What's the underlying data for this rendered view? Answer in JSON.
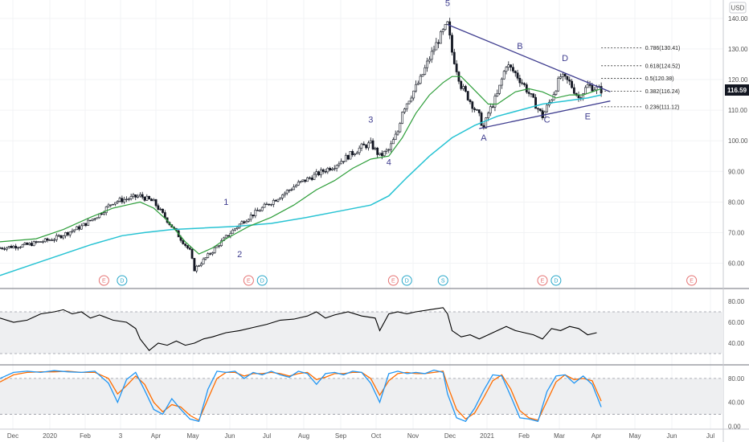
{
  "chart_data": {
    "type": "candlestick",
    "currency": "USD",
    "last_price": "116.59",
    "price_axis": {
      "min": 52,
      "max": 146,
      "ticks": [
        "140.00",
        "130.00",
        "120.00",
        "110.00",
        "100.00",
        "90.00",
        "80.00",
        "70.00",
        "60.00"
      ]
    },
    "time_axis": {
      "labels": [
        "Dec",
        "2020",
        "Feb",
        "3",
        "Apr",
        "May",
        "Jun",
        "Jul",
        "Aug",
        "Sep",
        "Oct",
        "Nov",
        "Dec",
        "2021",
        "Feb",
        "Mar",
        "Apr",
        "May",
        "Jun",
        "Jul"
      ]
    },
    "close_path": [
      [
        0,
        65
      ],
      [
        6,
        66
      ],
      [
        12,
        68
      ],
      [
        18,
        72
      ],
      [
        22,
        76
      ],
      [
        25,
        80
      ],
      [
        28,
        81
      ],
      [
        31,
        82
      ],
      [
        34,
        80
      ],
      [
        36,
        76
      ],
      [
        38,
        72
      ],
      [
        40,
        68
      ],
      [
        42,
        64
      ],
      [
        43,
        58
      ],
      [
        45,
        61
      ],
      [
        47,
        64
      ],
      [
        49,
        67
      ],
      [
        51,
        70
      ],
      [
        54,
        74
      ],
      [
        57,
        77
      ],
      [
        60,
        80
      ],
      [
        63,
        83
      ],
      [
        66,
        86
      ],
      [
        70,
        89
      ],
      [
        74,
        92
      ],
      [
        77,
        95
      ],
      [
        80,
        98
      ],
      [
        82,
        99
      ],
      [
        84,
        95
      ],
      [
        86,
        97
      ],
      [
        88,
        103
      ],
      [
        89,
        110
      ],
      [
        91,
        115
      ],
      [
        93,
        120
      ],
      [
        95,
        127
      ],
      [
        97,
        133
      ],
      [
        99,
        138
      ],
      [
        100,
        129
      ],
      [
        102,
        118
      ],
      [
        104,
        113
      ],
      [
        106,
        108
      ],
      [
        107,
        104
      ],
      [
        108,
        109
      ],
      [
        110,
        115
      ],
      [
        112,
        125
      ],
      [
        114,
        122
      ],
      [
        116,
        118
      ],
      [
        118,
        113
      ],
      [
        120,
        108
      ],
      [
        122,
        114
      ],
      [
        124,
        121
      ],
      [
        126,
        119
      ],
      [
        128,
        114
      ],
      [
        130,
        118
      ],
      [
        132,
        117
      ],
      [
        133,
        116.6
      ]
    ],
    "ma_fast": [
      [
        0,
        67
      ],
      [
        8,
        68
      ],
      [
        14,
        71
      ],
      [
        20,
        75
      ],
      [
        25,
        78
      ],
      [
        28,
        79
      ],
      [
        31,
        80
      ],
      [
        34,
        78
      ],
      [
        37,
        74
      ],
      [
        41,
        67
      ],
      [
        44,
        63
      ],
      [
        47,
        65
      ],
      [
        50,
        68
      ],
      [
        55,
        72
      ],
      [
        60,
        75
      ],
      [
        65,
        79
      ],
      [
        70,
        84
      ],
      [
        74,
        87
      ],
      [
        78,
        91
      ],
      [
        82,
        94
      ],
      [
        86,
        95
      ],
      [
        89,
        101
      ],
      [
        92,
        109
      ],
      [
        95,
        115
      ],
      [
        98,
        119
      ],
      [
        100,
        121
      ],
      [
        102,
        121
      ],
      [
        104,
        118
      ],
      [
        106,
        115
      ],
      [
        108,
        112
      ],
      [
        110,
        112
      ],
      [
        112,
        114
      ],
      [
        114,
        116
      ],
      [
        117,
        117
      ],
      [
        120,
        116
      ],
      [
        123,
        114
      ],
      [
        126,
        115
      ],
      [
        129,
        115
      ],
      [
        131,
        116
      ],
      [
        133,
        117
      ]
    ],
    "ma_slow": [
      [
        0,
        56
      ],
      [
        10,
        61
      ],
      [
        20,
        66
      ],
      [
        27,
        69
      ],
      [
        32,
        70
      ],
      [
        38,
        71
      ],
      [
        45,
        71.5
      ],
      [
        52,
        72
      ],
      [
        60,
        73
      ],
      [
        68,
        75
      ],
      [
        75,
        77
      ],
      [
        82,
        79
      ],
      [
        86,
        82
      ],
      [
        90,
        88
      ],
      [
        95,
        95
      ],
      [
        100,
        101
      ],
      [
        105,
        105
      ],
      [
        110,
        108
      ],
      [
        115,
        110
      ],
      [
        120,
        112
      ],
      [
        125,
        113
      ],
      [
        130,
        114
      ],
      [
        133,
        115
      ]
    ],
    "elliott_waves": [
      {
        "label": "1",
        "x": 50,
        "y": 79
      },
      {
        "label": "2",
        "x": 53,
        "y": 62
      },
      {
        "label": "3",
        "x": 82,
        "y": 106
      },
      {
        "label": "4",
        "x": 86,
        "y": 92
      },
      {
        "label": "5",
        "x": 99,
        "y": 144
      },
      {
        "label": "A",
        "x": 107,
        "y": 100
      },
      {
        "label": "B",
        "x": 115,
        "y": 130
      },
      {
        "label": "C",
        "x": 121,
        "y": 106
      },
      {
        "label": "D",
        "x": 125,
        "y": 126
      },
      {
        "label": "E",
        "x": 130,
        "y": 107
      }
    ],
    "triangle_lines": [
      {
        "from": [
          99,
          138
        ],
        "to": [
          135,
          116
        ]
      },
      {
        "from": [
          106,
          104
        ],
        "to": [
          135,
          113
        ]
      }
    ],
    "fibonacci_levels": [
      {
        "label": "0.786(130.41)",
        "value": 130.41
      },
      {
        "label": "0.618(124.52)",
        "value": 124.52
      },
      {
        "label": "0.5(120.38)",
        "value": 120.38
      },
      {
        "label": "0.382(116.24)",
        "value": 116.24
      },
      {
        "label": "0.236(111.12)",
        "value": 111.12
      }
    ],
    "events": [
      {
        "label": "E",
        "type": "earnings",
        "x": 23
      },
      {
        "label": "D",
        "type": "dividend",
        "x": 27
      },
      {
        "label": "E",
        "type": "earnings",
        "x": 55
      },
      {
        "label": "D",
        "type": "dividend",
        "x": 58
      },
      {
        "label": "E",
        "type": "earnings",
        "x": 87
      },
      {
        "label": "D",
        "type": "dividend",
        "x": 90
      },
      {
        "label": "S",
        "type": "split",
        "x": 98
      },
      {
        "label": "E",
        "type": "earnings",
        "x": 120
      },
      {
        "label": "D",
        "type": "dividend",
        "x": 123
      },
      {
        "label": "E",
        "type": "earnings",
        "x": 153
      }
    ],
    "rsi": {
      "ticks": [
        "80.00",
        "60.00",
        "40.00"
      ],
      "band": [
        30,
        70
      ],
      "values": [
        [
          0,
          64
        ],
        [
          3,
          60
        ],
        [
          6,
          62
        ],
        [
          9,
          68
        ],
        [
          12,
          70
        ],
        [
          14,
          72
        ],
        [
          16,
          68
        ],
        [
          18,
          70
        ],
        [
          20,
          64
        ],
        [
          22,
          67
        ],
        [
          25,
          62
        ],
        [
          28,
          60
        ],
        [
          30,
          54
        ],
        [
          31,
          44
        ],
        [
          33,
          33
        ],
        [
          35,
          40
        ],
        [
          37,
          38
        ],
        [
          39,
          42
        ],
        [
          41,
          38
        ],
        [
          43,
          40
        ],
        [
          45,
          44
        ],
        [
          47,
          46
        ],
        [
          50,
          50
        ],
        [
          53,
          52
        ],
        [
          56,
          55
        ],
        [
          59,
          58
        ],
        [
          62,
          62
        ],
        [
          65,
          63
        ],
        [
          68,
          66
        ],
        [
          70,
          70
        ],
        [
          72,
          64
        ],
        [
          74,
          67
        ],
        [
          77,
          70
        ],
        [
          80,
          66
        ],
        [
          83,
          64
        ],
        [
          84,
          52
        ],
        [
          86,
          68
        ],
        [
          88,
          70
        ],
        [
          90,
          68
        ],
        [
          92,
          70
        ],
        [
          95,
          72
        ],
        [
          98,
          74
        ],
        [
          99,
          68
        ],
        [
          100,
          52
        ],
        [
          102,
          46
        ],
        [
          104,
          48
        ],
        [
          106,
          44
        ],
        [
          108,
          48
        ],
        [
          110,
          52
        ],
        [
          112,
          56
        ],
        [
          114,
          52
        ],
        [
          116,
          50
        ],
        [
          118,
          48
        ],
        [
          120,
          44
        ],
        [
          122,
          54
        ],
        [
          124,
          52
        ],
        [
          126,
          56
        ],
        [
          128,
          54
        ],
        [
          130,
          48
        ],
        [
          132,
          50
        ]
      ]
    },
    "stoch": {
      "ticks": [
        "80.00",
        "40.00",
        "0.00"
      ],
      "band": [
        20,
        80
      ],
      "k": [
        [
          0,
          80
        ],
        [
          3,
          90
        ],
        [
          6,
          92
        ],
        [
          9,
          90
        ],
        [
          12,
          93
        ],
        [
          15,
          91
        ],
        [
          18,
          90
        ],
        [
          21,
          92
        ],
        [
          24,
          72
        ],
        [
          26,
          40
        ],
        [
          28,
          78
        ],
        [
          30,
          90
        ],
        [
          32,
          60
        ],
        [
          34,
          28
        ],
        [
          36,
          20
        ],
        [
          38,
          46
        ],
        [
          40,
          28
        ],
        [
          42,
          12
        ],
        [
          44,
          8
        ],
        [
          46,
          62
        ],
        [
          48,
          92
        ],
        [
          50,
          90
        ],
        [
          52,
          92
        ],
        [
          54,
          80
        ],
        [
          56,
          90
        ],
        [
          58,
          86
        ],
        [
          60,
          92
        ],
        [
          62,
          86
        ],
        [
          64,
          82
        ],
        [
          66,
          92
        ],
        [
          68,
          88
        ],
        [
          70,
          70
        ],
        [
          72,
          88
        ],
        [
          74,
          90
        ],
        [
          76,
          86
        ],
        [
          78,
          92
        ],
        [
          80,
          90
        ],
        [
          82,
          72
        ],
        [
          84,
          40
        ],
        [
          86,
          88
        ],
        [
          88,
          92
        ],
        [
          90,
          88
        ],
        [
          92,
          90
        ],
        [
          94,
          88
        ],
        [
          96,
          94
        ],
        [
          98,
          90
        ],
        [
          99,
          54
        ],
        [
          101,
          14
        ],
        [
          103,
          8
        ],
        [
          105,
          30
        ],
        [
          107,
          60
        ],
        [
          109,
          86
        ],
        [
          111,
          84
        ],
        [
          113,
          50
        ],
        [
          115,
          14
        ],
        [
          117,
          12
        ],
        [
          119,
          8
        ],
        [
          121,
          58
        ],
        [
          123,
          84
        ],
        [
          125,
          86
        ],
        [
          127,
          72
        ],
        [
          129,
          84
        ],
        [
          131,
          70
        ],
        [
          133,
          32
        ]
      ],
      "d": [
        [
          0,
          74
        ],
        [
          3,
          86
        ],
        [
          6,
          90
        ],
        [
          9,
          91
        ],
        [
          12,
          91
        ],
        [
          15,
          92
        ],
        [
          18,
          90
        ],
        [
          21,
          90
        ],
        [
          24,
          80
        ],
        [
          26,
          54
        ],
        [
          28,
          68
        ],
        [
          30,
          84
        ],
        [
          32,
          70
        ],
        [
          34,
          40
        ],
        [
          36,
          24
        ],
        [
          38,
          36
        ],
        [
          40,
          32
        ],
        [
          42,
          18
        ],
        [
          44,
          10
        ],
        [
          46,
          46
        ],
        [
          48,
          80
        ],
        [
          50,
          90
        ],
        [
          52,
          90
        ],
        [
          54,
          84
        ],
        [
          56,
          88
        ],
        [
          58,
          88
        ],
        [
          60,
          90
        ],
        [
          62,
          88
        ],
        [
          64,
          84
        ],
        [
          66,
          88
        ],
        [
          68,
          90
        ],
        [
          70,
          78
        ],
        [
          72,
          82
        ],
        [
          74,
          88
        ],
        [
          76,
          88
        ],
        [
          78,
          90
        ],
        [
          80,
          90
        ],
        [
          82,
          80
        ],
        [
          84,
          52
        ],
        [
          86,
          76
        ],
        [
          88,
          88
        ],
        [
          90,
          90
        ],
        [
          92,
          88
        ],
        [
          94,
          88
        ],
        [
          96,
          90
        ],
        [
          98,
          92
        ],
        [
          99,
          68
        ],
        [
          101,
          28
        ],
        [
          103,
          12
        ],
        [
          105,
          22
        ],
        [
          107,
          48
        ],
        [
          109,
          76
        ],
        [
          111,
          86
        ],
        [
          113,
          62
        ],
        [
          115,
          26
        ],
        [
          117,
          14
        ],
        [
          119,
          10
        ],
        [
          121,
          42
        ],
        [
          123,
          74
        ],
        [
          125,
          86
        ],
        [
          127,
          78
        ],
        [
          129,
          80
        ],
        [
          131,
          76
        ],
        [
          133,
          42
        ]
      ]
    },
    "colors": {
      "price": "#131722",
      "ma_fast": "#2e9e3a",
      "ma_slow": "#27c3d3",
      "annotation": "#3f3d8f",
      "rsi": "#000000",
      "stoch_k": "#2196f3",
      "stoch_d": "#ff6d00",
      "band": "#eeeff1",
      "earnings": "#e57373",
      "dividend": "#27a7c9"
    }
  }
}
